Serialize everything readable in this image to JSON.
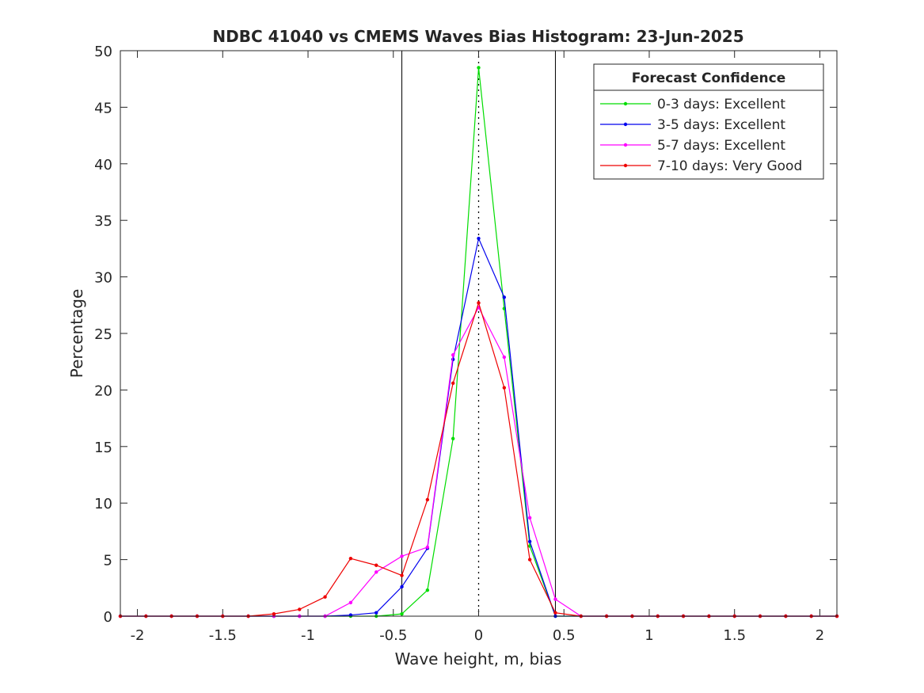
{
  "chart_data": {
    "type": "line",
    "title": "NDBC 41040 vs CMEMS Waves Bias Histogram: 23-Jun-2025",
    "xlabel": "Wave height, m, bias",
    "ylabel": "Percentage",
    "xlim": [
      -2.1,
      2.1
    ],
    "ylim": [
      0,
      50
    ],
    "xticks": [
      -2,
      -1.5,
      -1,
      -0.5,
      0,
      0.5,
      1,
      1.5,
      2
    ],
    "xtick_labels": [
      "-2",
      "-1.5",
      "-1",
      "-0.5",
      "0",
      "0.5",
      "1",
      "1.5",
      "2"
    ],
    "yticks": [
      0,
      5,
      10,
      15,
      20,
      25,
      30,
      35,
      40,
      45,
      50
    ],
    "ytick_labels": [
      "0",
      "5",
      "10",
      "15",
      "20",
      "25",
      "30",
      "35",
      "40",
      "45",
      "50"
    ],
    "grid": false,
    "vertical_lines": [
      {
        "x": -0.45,
        "style": "solid"
      },
      {
        "x": 0,
        "style": "dotted"
      },
      {
        "x": 0.45,
        "style": "solid"
      }
    ],
    "legend": {
      "title": "Forecast Confidence",
      "position": "top-right"
    },
    "x": [
      -2.1,
      -1.95,
      -1.8,
      -1.65,
      -1.5,
      -1.35,
      -1.2,
      -1.05,
      -0.9,
      -0.75,
      -0.6,
      -0.45,
      -0.3,
      -0.15,
      0,
      0.15,
      0.3,
      0.45,
      0.6,
      0.75,
      0.9,
      1.05,
      1.2,
      1.35,
      1.5,
      1.65,
      1.8,
      1.95,
      2.1
    ],
    "series": [
      {
        "name": "0-3 days: Excellent",
        "color": "#00dd00",
        "values": [
          0,
          0,
          0,
          0,
          0,
          0,
          0,
          0,
          0,
          0,
          0,
          0.2,
          2.3,
          15.7,
          48.5,
          27.2,
          6.2,
          0,
          0,
          0,
          0,
          0,
          0,
          0,
          0,
          0,
          0,
          0,
          0
        ]
      },
      {
        "name": "3-5 days: Excellent",
        "color": "#0000ee",
        "values": [
          0,
          0,
          0,
          0,
          0,
          0,
          0,
          0,
          0,
          0.1,
          0.3,
          2.6,
          6.0,
          22.7,
          33.4,
          28.2,
          6.6,
          0,
          0,
          0,
          0,
          0,
          0,
          0,
          0,
          0,
          0,
          0,
          0
        ]
      },
      {
        "name": "5-7 days: Excellent",
        "color": "#ff00ff",
        "values": [
          0,
          0,
          0,
          0,
          0,
          0,
          0,
          0,
          0,
          1.2,
          3.9,
          5.3,
          6.1,
          23.1,
          27.3,
          22.9,
          8.7,
          1.5,
          0,
          0,
          0,
          0,
          0,
          0,
          0,
          0,
          0,
          0,
          0
        ]
      },
      {
        "name": "7-10 days: Very Good",
        "color": "#ee0000",
        "values": [
          0,
          0,
          0,
          0,
          0,
          0,
          0.2,
          0.6,
          1.7,
          5.1,
          4.5,
          3.6,
          10.3,
          20.6,
          27.7,
          20.2,
          5.0,
          0.3,
          0,
          0,
          0,
          0,
          0,
          0,
          0,
          0,
          0,
          0,
          0
        ]
      }
    ]
  }
}
